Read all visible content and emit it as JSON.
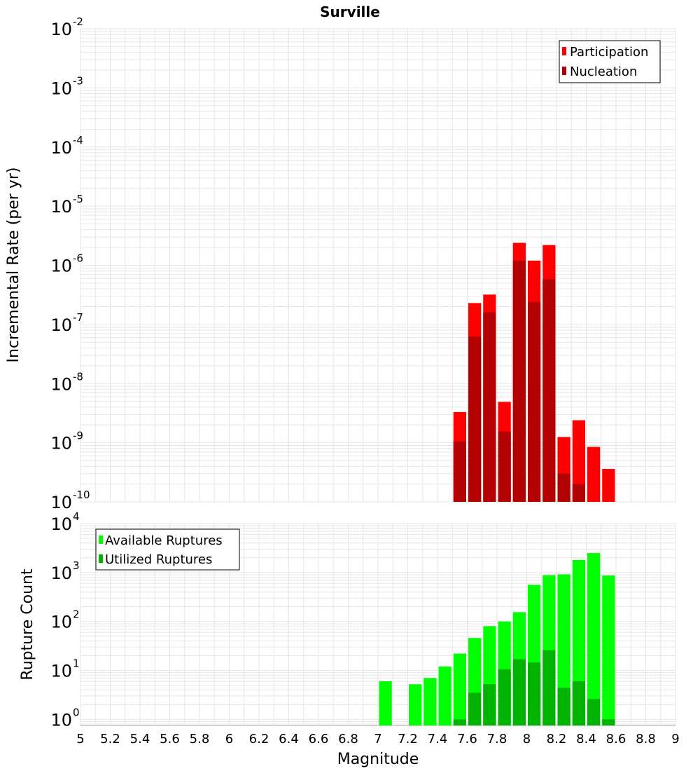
{
  "chart_data": {
    "type": "bar",
    "title": "Surville",
    "xlabel": "Magnitude",
    "xlim": [
      5,
      9
    ],
    "x_ticks": [
      "5",
      "5.2",
      "5.4",
      "5.6",
      "5.8",
      "6",
      "6.2",
      "6.4",
      "6.6",
      "6.8",
      "7",
      "7.2",
      "7.4",
      "7.6",
      "7.8",
      "8",
      "8.2",
      "8.4",
      "8.6",
      "8.8",
      "9"
    ],
    "bin_width": 0.1,
    "grid": true,
    "panels": [
      {
        "ylabel": "Incremental Rate (per yr)",
        "yscale": "log",
        "ylim": [
          1e-10,
          0.01
        ],
        "y_tick_exponents": [
          "-10",
          "-9",
          "-8",
          "-7",
          "-6",
          "-5",
          "-4",
          "-3",
          "-2"
        ],
        "legend_position": "top-right",
        "series": [
          {
            "name": "Participation",
            "color": "#ff0000",
            "points": [
              [
                7.55,
                3.3e-09
              ],
              [
                7.65,
                2.3e-07
              ],
              [
                7.75,
                3.2e-07
              ],
              [
                7.85,
                4.9e-09
              ],
              [
                7.95,
                2.4e-06
              ],
              [
                8.05,
                1.2e-06
              ],
              [
                8.15,
                2.2e-06
              ],
              [
                8.25,
                1.25e-09
              ],
              [
                8.35,
                2.4e-09
              ],
              [
                8.45,
                8.5e-10
              ],
              [
                8.55,
                3.6e-10
              ]
            ]
          },
          {
            "name": "Nucleation",
            "color": "#b30000",
            "points": [
              [
                7.55,
                1.05e-09
              ],
              [
                7.65,
                6.2e-08
              ],
              [
                7.75,
                1.6e-07
              ],
              [
                7.85,
                1.55e-09
              ],
              [
                7.95,
                1.2e-06
              ],
              [
                8.05,
                2.4e-07
              ],
              [
                8.15,
                5.8e-07
              ],
              [
                8.25,
                3e-10
              ],
              [
                8.35,
                2e-10
              ]
            ]
          }
        ]
      },
      {
        "ylabel": "Rupture Count",
        "yscale": "log",
        "ylim": [
          0.75,
          10000
        ],
        "y_tick_exponents": [
          "0",
          "1",
          "2",
          "3",
          "4"
        ],
        "legend_position": "top-left",
        "series": [
          {
            "name": "Available Ruptures",
            "color": "#00ff00",
            "points": [
              [
                7.05,
                6
              ],
              [
                7.25,
                5.2
              ],
              [
                7.35,
                7
              ],
              [
                7.45,
                12
              ],
              [
                7.55,
                22
              ],
              [
                7.65,
                46
              ],
              [
                7.75,
                80
              ],
              [
                7.85,
                100
              ],
              [
                7.95,
                155
              ],
              [
                8.05,
                560
              ],
              [
                8.15,
                880
              ],
              [
                8.25,
                920
              ],
              [
                8.35,
                1800
              ],
              [
                8.45,
                2500
              ],
              [
                8.55,
                870
              ]
            ]
          },
          {
            "name": "Utilized Ruptures",
            "color": "#00b300",
            "points": [
              [
                7.55,
                1
              ],
              [
                7.65,
                3.5
              ],
              [
                7.75,
                5.2
              ],
              [
                7.85,
                10.5
              ],
              [
                7.95,
                17
              ],
              [
                8.05,
                14.5
              ],
              [
                8.15,
                26
              ],
              [
                8.25,
                4.4
              ],
              [
                8.35,
                6
              ],
              [
                8.45,
                2.6
              ],
              [
                8.55,
                1
              ]
            ]
          }
        ]
      }
    ]
  }
}
